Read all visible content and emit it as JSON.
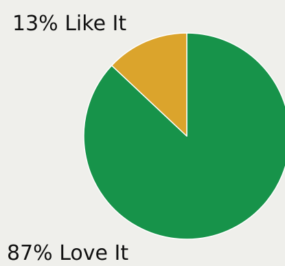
{
  "chart_data": {
    "type": "pie",
    "slices": [
      {
        "label": "Love It",
        "value": 87,
        "display": "87% Love It",
        "color": "#17934a"
      },
      {
        "label": "Like It",
        "value": 13,
        "display": "13% Like It",
        "color": "#dba42c"
      }
    ],
    "start_angle": "12 o'clock",
    "direction": "clockwise",
    "slice_border_color": "#ffffff"
  }
}
